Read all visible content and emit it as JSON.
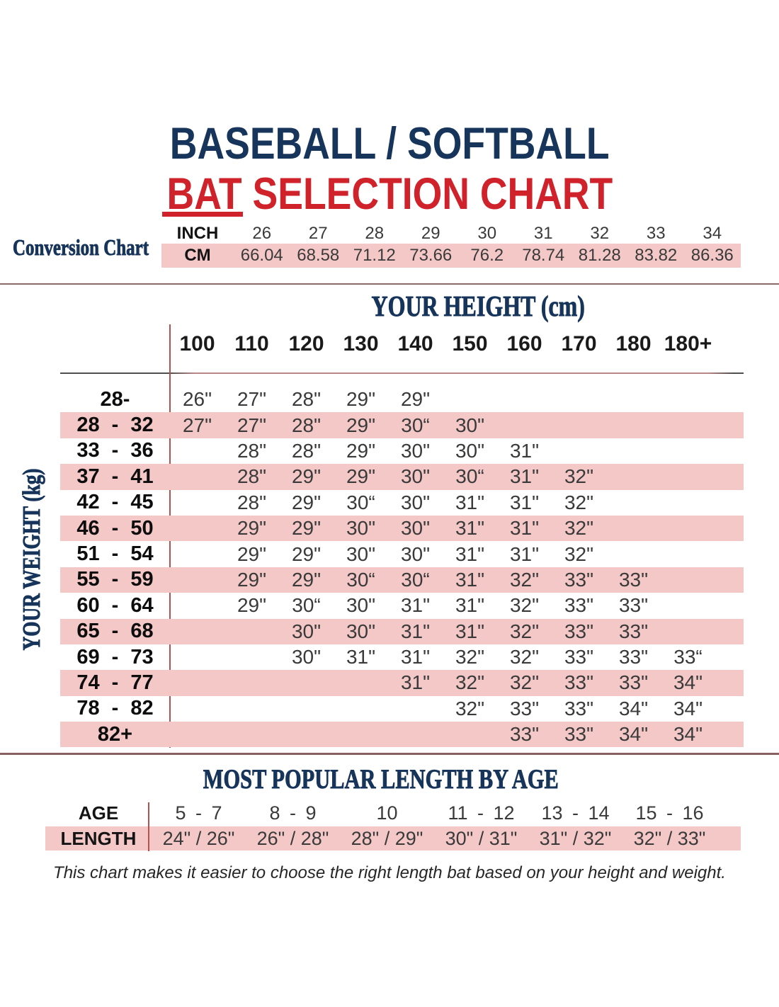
{
  "title": {
    "line1": "BASEBALL / SOFTBALL",
    "bat": "BAT",
    "rest": " SELECTION CHART"
  },
  "footer": "This chart makes it easier to choose the right length bat based on your height and weight.",
  "colors": {
    "navy": "#17345a",
    "red": "#d0222b",
    "pink": "#f5c8c8",
    "line_red": "#b5504c"
  },
  "chart_data": [
    {
      "type": "table",
      "name": "conversion_chart",
      "title": "Conversion Chart",
      "row_labels": [
        "INCH",
        "CM"
      ],
      "inches": [
        "26",
        "27",
        "28",
        "29",
        "30",
        "31",
        "32",
        "33",
        "34"
      ],
      "cms": [
        "66.04",
        "68.58",
        "71.12",
        "73.66",
        "76.2",
        "78.74",
        "81.28",
        "83.82",
        "86.36"
      ]
    },
    {
      "type": "table",
      "name": "bat_length_by_height_weight",
      "x_label": "YOUR HEIGHT (cm)",
      "y_label": "YOUR WEIGHT (kg)",
      "columns": [
        "100",
        "110",
        "120",
        "130",
        "140",
        "150",
        "160",
        "170",
        "180",
        "180+"
      ],
      "rows": [
        {
          "weight": "28-",
          "values": [
            "26\"",
            "27\"",
            "28\"",
            "29\"",
            "29\"",
            "",
            "",
            "",
            "",
            ""
          ]
        },
        {
          "weight": "28 - 32",
          "values": [
            "27\"",
            "27\"",
            "28\"",
            "29\"",
            "30“",
            "30\"",
            "",
            "",
            "",
            ""
          ]
        },
        {
          "weight": "33 - 36",
          "values": [
            "",
            "28\"",
            "28\"",
            "29\"",
            "30\"",
            "30\"",
            "31\"",
            "",
            "",
            ""
          ]
        },
        {
          "weight": "37 - 41",
          "values": [
            "",
            "28\"",
            "29\"",
            "29\"",
            "30\"",
            "30“",
            "31\"",
            "32\"",
            "",
            ""
          ]
        },
        {
          "weight": "42 - 45",
          "values": [
            "",
            "28\"",
            "29\"",
            "30“",
            "30\"",
            "31\"",
            "31\"",
            "32\"",
            "",
            ""
          ]
        },
        {
          "weight": "46 - 50",
          "values": [
            "",
            "29\"",
            "29\"",
            "30\"",
            "30\"",
            "31\"",
            "31\"",
            "32\"",
            "",
            ""
          ]
        },
        {
          "weight": "51 - 54",
          "values": [
            "",
            "29\"",
            "29\"",
            "30\"",
            "30\"",
            "31\"",
            "31\"",
            "32\"",
            "",
            ""
          ]
        },
        {
          "weight": "55 - 59",
          "values": [
            "",
            "29\"",
            "29\"",
            "30“",
            "30“",
            "31\"",
            "32\"",
            "33\"",
            "33\"",
            ""
          ]
        },
        {
          "weight": "60 - 64",
          "values": [
            "",
            "29\"",
            "30“",
            "30\"",
            "31\"",
            "31\"",
            "32\"",
            "33\"",
            "33\"",
            ""
          ]
        },
        {
          "weight": "65 - 68",
          "values": [
            "",
            "",
            "30\"",
            "30\"",
            "31\"",
            "31\"",
            "32\"",
            "33\"",
            "33\"",
            ""
          ]
        },
        {
          "weight": "69 - 73",
          "values": [
            "",
            "",
            "30\"",
            "31\"",
            "31\"",
            "32\"",
            "32\"",
            "33\"",
            "33\"",
            "33“"
          ]
        },
        {
          "weight": "74 - 77",
          "values": [
            "",
            "",
            "",
            "",
            "31\"",
            "32\"",
            "32\"",
            "33\"",
            "33\"",
            "34\""
          ]
        },
        {
          "weight": "78 - 82",
          "values": [
            "",
            "",
            "",
            "",
            "",
            "32\"",
            "33\"",
            "33\"",
            "34\"",
            "34\""
          ]
        },
        {
          "weight": "82+",
          "values": [
            "",
            "",
            "",
            "",
            "",
            "",
            "33\"",
            "33\"",
            "34\"",
            "34\""
          ]
        }
      ]
    },
    {
      "type": "table",
      "name": "most_popular_length_by_age",
      "title": "MOST POPULAR LENGTH BY AGE",
      "age_label": "AGE",
      "length_label": "LENGTH",
      "ages": [
        "5 - 7",
        "8 - 9",
        "10",
        "11 - 12",
        "13 - 14",
        "15 - 16"
      ],
      "lengths": [
        "24\" / 26\"",
        "26\" / 28\"",
        "28\" / 29\"",
        "30\" / 31\"",
        "31\" / 32\"",
        "32\" / 33\""
      ]
    }
  ]
}
